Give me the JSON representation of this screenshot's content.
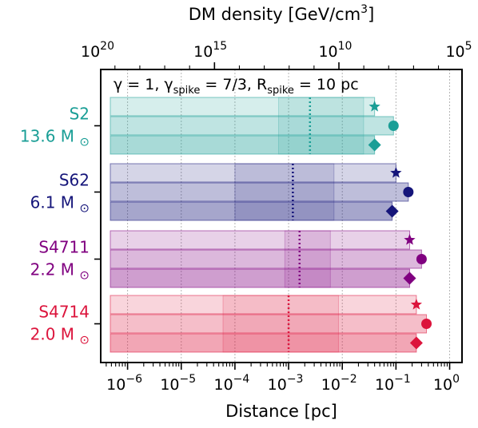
{
  "chart_data": {
    "type": "bar",
    "orientation": "horizontal",
    "x_scale": "log",
    "grid": true,
    "xlabel": "Distance [pc]",
    "xlim": [
      3.16e-07,
      1.7
    ],
    "xticks": [
      {
        "value": 1e-06,
        "label": "10",
        "exp": "−6"
      },
      {
        "value": 1e-05,
        "label": "10",
        "exp": "−5"
      },
      {
        "value": 0.0001,
        "label": "10",
        "exp": "−4"
      },
      {
        "value": 0.001,
        "label": "10",
        "exp": "−3"
      },
      {
        "value": 0.01,
        "label": "10",
        "exp": "−2"
      },
      {
        "value": 0.1,
        "label": "10",
        "exp": "−1"
      },
      {
        "value": 1,
        "label": "10",
        "exp": "0"
      }
    ],
    "top_axis": {
      "label_parts": [
        "DM density [GeV/cm",
        "3",
        "]"
      ],
      "xticks": [
        {
          "value": 2e-07,
          "label": "10",
          "exp": "20"
        },
        {
          "value": 4e-05,
          "label": "10",
          "exp": "15"
        },
        {
          "value": 0.0085,
          "label": "10",
          "exp": "10"
        },
        {
          "value": 1.8,
          "label": "10",
          "exp": "5"
        }
      ]
    },
    "annotation_parts": [
      "γ = 1, γ",
      "spike",
      " = 7/3, R",
      "spike",
      " = 10 pc"
    ],
    "series_style": [
      {
        "marker": "star",
        "meaning": "upper bar"
      },
      {
        "marker": "circle",
        "meaning": "middle bar"
      },
      {
        "marker": "diamond",
        "meaning": "lower bar"
      }
    ],
    "categories": [
      {
        "name": "S2",
        "mass": "13.6 M",
        "mass_symbol": "⊙",
        "color": "#1a9e96",
        "bars": [
          0.04,
          0.09,
          0.04
        ],
        "marker_values": [
          0.04,
          0.09,
          0.04
        ],
        "shade_range": [
          0.00065,
          0.025
        ],
        "dotted_value": 0.0025
      },
      {
        "name": "S62",
        "mass": "6.1 M",
        "mass_symbol": "⊙",
        "color": "#15157a",
        "bars": [
          0.1,
          0.17,
          0.085
        ],
        "marker_values": [
          0.1,
          0.17,
          0.085
        ],
        "shade_range": [
          0.0001,
          0.007
        ],
        "dotted_value": 0.0012
      },
      {
        "name": "S4711",
        "mass": "2.2 M",
        "mass_symbol": "⊙",
        "color": "#800080",
        "bars": [
          0.18,
          0.3,
          0.18
        ],
        "marker_values": [
          0.18,
          0.3,
          0.18
        ],
        "shade_range": [
          0.00085,
          0.006
        ],
        "dotted_value": 0.0016
      },
      {
        "name": "S4714",
        "mass": "2.0 M",
        "mass_symbol": "⊙",
        "color": "#dc143c",
        "bars": [
          0.24,
          0.37,
          0.24
        ],
        "marker_values": [
          0.24,
          0.37,
          0.24
        ],
        "shade_range": [
          6e-05,
          0.0085
        ],
        "dotted_value": 0.001
      }
    ]
  }
}
